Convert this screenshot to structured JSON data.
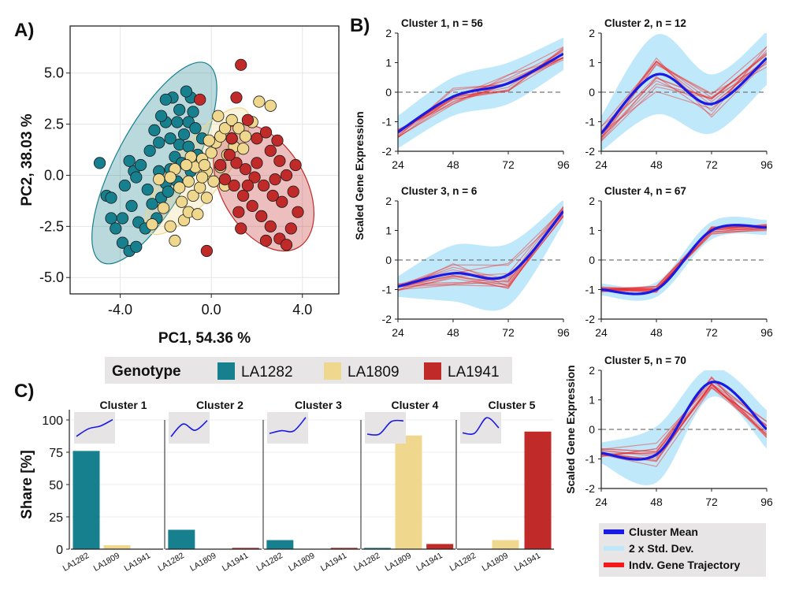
{
  "panel_labels": {
    "a": "A)",
    "b": "B)",
    "c": "C)"
  },
  "colors": {
    "LA1282": "#16808f",
    "LA1809": "#efd88d",
    "LA1941": "#c02a28",
    "mean": "#1a1ae6",
    "sd": "#bfe9fa",
    "gene": "#f21a1a"
  },
  "chart_data": [
    {
      "id": "pca",
      "type": "scatter",
      "title": "",
      "xlabel": "PC1, 54.36 %",
      "ylabel": "PC2, 38.03 %",
      "xlim": [
        -6.2,
        5.6
      ],
      "ylim": [
        -5.8,
        7.3
      ],
      "x_ticks": [
        -4.0,
        0.0,
        4.0
      ],
      "x_tick_labels": [
        "-4.0",
        "0.0",
        "4.0"
      ],
      "y_ticks": [
        -5.0,
        -2.5,
        0.0,
        2.5,
        5.0
      ],
      "y_tick_labels": [
        "-5.0",
        "-2.5",
        "0.0",
        "2.5",
        "5.0"
      ],
      "grid": true,
      "ellipses": [
        {
          "group": "LA1282",
          "cx": -2.5,
          "cy": 0.6,
          "rx": 5.2,
          "ry": 1.75,
          "angle_deg": 62
        },
        {
          "group": "LA1809",
          "cx": -0.6,
          "cy": 0.2,
          "rx": 3.6,
          "ry": 1.2,
          "angle_deg": 52
        },
        {
          "group": "LA1941",
          "cx": 2.3,
          "cy": -0.6,
          "rx": 3.2,
          "ry": 1.95,
          "angle_deg": -60
        }
      ],
      "series": [
        {
          "name": "LA1282",
          "points": [
            [
              -4.9,
              0.6
            ],
            [
              -4.6,
              -1.0
            ],
            [
              -4.4,
              -2.1
            ],
            [
              -4.2,
              -2.6
            ],
            [
              -3.9,
              -3.3
            ],
            [
              -3.6,
              -3.7
            ],
            [
              -3.3,
              -3.5
            ],
            [
              -3.2,
              -2.3
            ],
            [
              -3.5,
              -1.5
            ],
            [
              -3.8,
              -0.5
            ],
            [
              -3.4,
              0.2
            ],
            [
              -3.1,
              0.5
            ],
            [
              -2.8,
              -0.7
            ],
            [
              -2.6,
              -1.4
            ],
            [
              -2.4,
              -2.1
            ],
            [
              -2.2,
              -1.1
            ],
            [
              -2.0,
              -0.4
            ],
            [
              -1.8,
              0.3
            ],
            [
              -1.6,
              0.9
            ],
            [
              -1.4,
              1.5
            ],
            [
              -1.2,
              2.0
            ],
            [
              -1.0,
              2.6
            ],
            [
              -0.8,
              3.1
            ],
            [
              -0.9,
              3.8
            ],
            [
              -1.1,
              4.1
            ],
            [
              -1.7,
              3.8
            ],
            [
              -2.0,
              2.6
            ],
            [
              -1.8,
              1.8
            ],
            [
              -2.2,
              2.9
            ],
            [
              -2.5,
              2.2
            ],
            [
              -1.3,
              0.6
            ],
            [
              -1.0,
              1.4
            ],
            [
              -0.7,
              2.3
            ],
            [
              -0.6,
              1.0
            ],
            [
              -1.5,
              -0.3
            ],
            [
              -2.9,
              -2.6
            ],
            [
              -3.9,
              -2.1
            ],
            [
              -4.4,
              -1.1
            ],
            [
              -3.6,
              0.7
            ],
            [
              -2.3,
              0.2
            ],
            [
              -1.9,
              -0.8
            ],
            [
              -2.7,
              1.2
            ],
            [
              -1.5,
              2.6
            ],
            [
              -1.4,
              3.2
            ],
            [
              -2.3,
              1.6
            ],
            [
              -0.4,
              1.8
            ],
            [
              -2.0,
              3.7
            ],
            [
              -0.9,
              0.2
            ],
            [
              -3.3,
              -0.1
            ]
          ]
        },
        {
          "name": "LA1809",
          "points": [
            [
              -2.1,
              -1.6
            ],
            [
              -1.8,
              -2.5
            ],
            [
              -1.6,
              -3.2
            ],
            [
              -1.2,
              -2.2
            ],
            [
              -1.3,
              -1.3
            ],
            [
              -1.0,
              -1.8
            ],
            [
              -0.8,
              -1.0
            ],
            [
              -1.0,
              -0.3
            ],
            [
              -0.5,
              -0.6
            ],
            [
              -0.7,
              0.4
            ],
            [
              -0.4,
              0.8
            ],
            [
              -0.2,
              0.2
            ],
            [
              0.0,
              1.1
            ],
            [
              0.2,
              1.6
            ],
            [
              0.4,
              1.9
            ],
            [
              0.6,
              2.3
            ],
            [
              0.9,
              2.7
            ],
            [
              1.2,
              2.3
            ],
            [
              1.5,
              1.9
            ],
            [
              1.8,
              2.6
            ],
            [
              2.1,
              3.6
            ],
            [
              2.6,
              3.4
            ],
            [
              0.1,
              -0.3
            ],
            [
              0.4,
              0.4
            ],
            [
              0.7,
              1.0
            ],
            [
              1.0,
              1.4
            ],
            [
              -0.2,
              -1.1
            ],
            [
              -0.6,
              -1.9
            ],
            [
              -1.4,
              -0.6
            ],
            [
              -0.3,
              0.5
            ],
            [
              0.3,
              2.9
            ],
            [
              0.9,
              1.8
            ],
            [
              1.4,
              1.3
            ],
            [
              -0.9,
              0.9
            ],
            [
              -1.6,
              0.3
            ],
            [
              -0.1,
              1.7
            ],
            [
              -1.1,
              0.5
            ],
            [
              -2.3,
              -0.2
            ],
            [
              -2.6,
              -2.4
            ],
            [
              0.6,
              -0.5
            ],
            [
              -0.4,
              -0.1
            ],
            [
              -1.8,
              -0.1
            ]
          ]
        },
        {
          "name": "LA1941",
          "points": [
            [
              1.3,
              5.4
            ],
            [
              1.1,
              3.8
            ],
            [
              1.6,
              2.7
            ],
            [
              2.0,
              1.8
            ],
            [
              2.6,
              1.2
            ],
            [
              3.0,
              0.7
            ],
            [
              3.3,
              0.0
            ],
            [
              3.6,
              -0.8
            ],
            [
              3.8,
              -1.8
            ],
            [
              3.5,
              -2.6
            ],
            [
              3.1,
              -1.3
            ],
            [
              2.7,
              -1.0
            ],
            [
              2.3,
              -0.5
            ],
            [
              1.9,
              -0.1
            ],
            [
              1.5,
              0.3
            ],
            [
              1.1,
              0.6
            ],
            [
              0.8,
              1.0
            ],
            [
              1.0,
              -0.5
            ],
            [
              1.4,
              -1.0
            ],
            [
              1.8,
              -1.5
            ],
            [
              2.2,
              -2.0
            ],
            [
              2.6,
              -2.5
            ],
            [
              3.0,
              -3.1
            ],
            [
              2.4,
              -3.2
            ],
            [
              0.6,
              -0.2
            ],
            [
              0.4,
              0.5
            ],
            [
              1.2,
              -1.8
            ],
            [
              -0.2,
              -3.7
            ],
            [
              -0.5,
              3.7
            ],
            [
              3.3,
              -3.4
            ],
            [
              1.6,
              -0.5
            ],
            [
              2.0,
              0.6
            ],
            [
              2.8,
              -0.2
            ],
            [
              0.9,
              1.8
            ],
            [
              3.7,
              0.5
            ],
            [
              2.4,
              2.1
            ],
            [
              1.3,
              -2.6
            ],
            [
              2.9,
              1.7
            ]
          ]
        }
      ]
    },
    {
      "id": "trajectories",
      "type": "line",
      "x": [
        24,
        48,
        72,
        96
      ],
      "ylim": [
        -2,
        2
      ],
      "y_ticks": [
        -2,
        -1,
        0,
        1,
        2
      ],
      "ylabel": "Scaled Gene Expression",
      "panels": [
        {
          "title": "Cluster 1, n = 56",
          "mean": [
            -1.35,
            -0.15,
            0.3,
            1.3
          ],
          "sd": [
            0.55,
            0.65,
            0.7,
            0.55
          ]
        },
        {
          "title": "Cluster 2, n = 12",
          "mean": [
            -1.4,
            0.6,
            -0.4,
            1.15
          ],
          "sd": [
            0.6,
            1.35,
            1.0,
            0.9
          ]
        },
        {
          "title": "Cluster 3, n = 6",
          "mean": [
            -0.9,
            -0.45,
            -0.5,
            1.65
          ],
          "sd": [
            0.35,
            0.95,
            1.05,
            0.4
          ]
        },
        {
          "title": "Cluster 4, n = 67",
          "mean": [
            -1.0,
            -1.0,
            1.0,
            1.1
          ],
          "sd": [
            0.2,
            0.25,
            0.3,
            0.25
          ]
        },
        {
          "title": "Cluster 5, n = 70",
          "mean": [
            -0.8,
            -0.85,
            1.6,
            0.0
          ],
          "sd": [
            0.35,
            0.95,
            0.5,
            0.65
          ]
        }
      ],
      "legend": [
        {
          "label": "Cluster Mean",
          "color": "#1a1ae6"
        },
        {
          "label": "2 x Std. Dev.",
          "color": "#bfe9fa"
        },
        {
          "label": "Indv. Gene Trajectory",
          "color": "#f21a1a"
        }
      ]
    },
    {
      "id": "shares",
      "type": "bar",
      "ylabel": "Share [%]",
      "ylim": [
        0,
        100
      ],
      "y_ticks": [
        0,
        25,
        50,
        75,
        100
      ],
      "legend_title": "Genotype",
      "categories": [
        "LA1282",
        "LA1809",
        "LA1941"
      ],
      "panels": [
        {
          "title": "Cluster 1",
          "values": [
            76,
            3,
            0
          ]
        },
        {
          "title": "Cluster 2",
          "values": [
            15,
            0,
            1
          ]
        },
        {
          "title": "Cluster 3",
          "values": [
            7,
            0,
            1
          ]
        },
        {
          "title": "Cluster 4",
          "values": [
            1,
            88,
            4
          ]
        },
        {
          "title": "Cluster 5",
          "values": [
            0,
            7,
            91
          ]
        }
      ]
    }
  ]
}
